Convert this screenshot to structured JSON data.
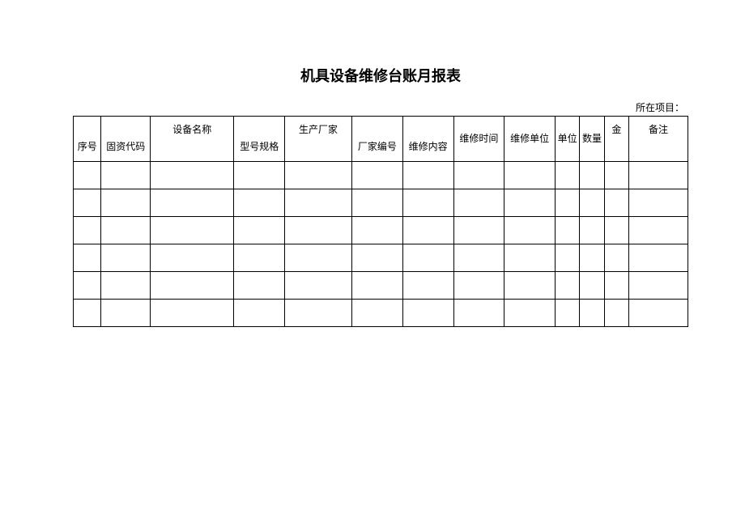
{
  "title": "机具设备维修台账月报表",
  "subtitle": "所在项目：",
  "headers": {
    "col0": "序号",
    "col1": "固资代码",
    "col2": "设备名称",
    "col3": "型号规格",
    "col4": "生产厂家",
    "col5": "厂家编号",
    "col6": "维修内容",
    "col7": "维修时间",
    "col8": "维修单位",
    "col9": "单位",
    "col10": "数量",
    "col11": "金",
    "col12": "备注"
  },
  "num_data_rows": 6,
  "colors": {
    "background": "#ffffff",
    "text": "#000000",
    "border": "#000000"
  }
}
